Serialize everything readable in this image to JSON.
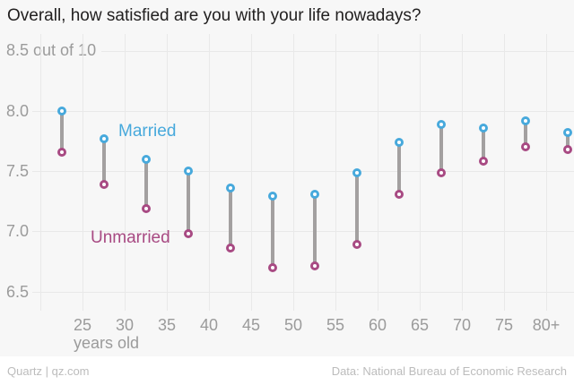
{
  "chart_data": {
    "type": "scatter",
    "variant": "dumbbell",
    "title": "Overall, how satisfied are you with your life nowadays?",
    "y_top_label": "8.5 out of 10",
    "x_axis": {
      "unit_label": "years old",
      "tick_labels": [
        "25",
        "30",
        "35",
        "40",
        "45",
        "50",
        "55",
        "60",
        "65",
        "70",
        "75",
        "80+"
      ],
      "tick_ages": [
        25,
        30,
        35,
        40,
        45,
        50,
        55,
        60,
        65,
        70,
        75,
        80
      ],
      "grid_ages": [
        20,
        25,
        30,
        35,
        40,
        45,
        50,
        55,
        60,
        65,
        70,
        75,
        80
      ]
    },
    "y_axis": {
      "tick_labels": [
        "8.0",
        "7.5",
        "7.0",
        "6.5"
      ],
      "tick_values": [
        8.0,
        7.5,
        7.0,
        6.5
      ],
      "grid_values": [
        8.5,
        8.0,
        7.5,
        7.0,
        6.5
      ],
      "ylim": [
        6.4,
        8.5
      ]
    },
    "age_midpoints": [
      22.5,
      27.5,
      32.5,
      37.5,
      42.5,
      47.5,
      52.5,
      57.5,
      62.5,
      67.5,
      72.5,
      77.5,
      82.5
    ],
    "series": [
      {
        "name": "Married",
        "color": "#47a9dc",
        "values": [
          8.0,
          7.77,
          7.6,
          7.5,
          7.36,
          7.29,
          7.31,
          7.49,
          7.74,
          7.89,
          7.86,
          7.92,
          7.82
        ]
      },
      {
        "name": "Unmarried",
        "color": "#a84a83",
        "values": [
          7.66,
          7.39,
          7.19,
          6.98,
          6.86,
          6.7,
          6.71,
          6.89,
          7.31,
          7.49,
          7.58,
          7.7,
          7.68
        ]
      }
    ],
    "connector_color": "#a3a0a0",
    "grid_color": "#e9e9e9",
    "background_color": "#f7f7f7",
    "legend_position": "inline-labels",
    "grid": "on"
  },
  "footer": {
    "left": "Quartz | qz.com",
    "right": "Data: National Bureau of Economic Research"
  }
}
